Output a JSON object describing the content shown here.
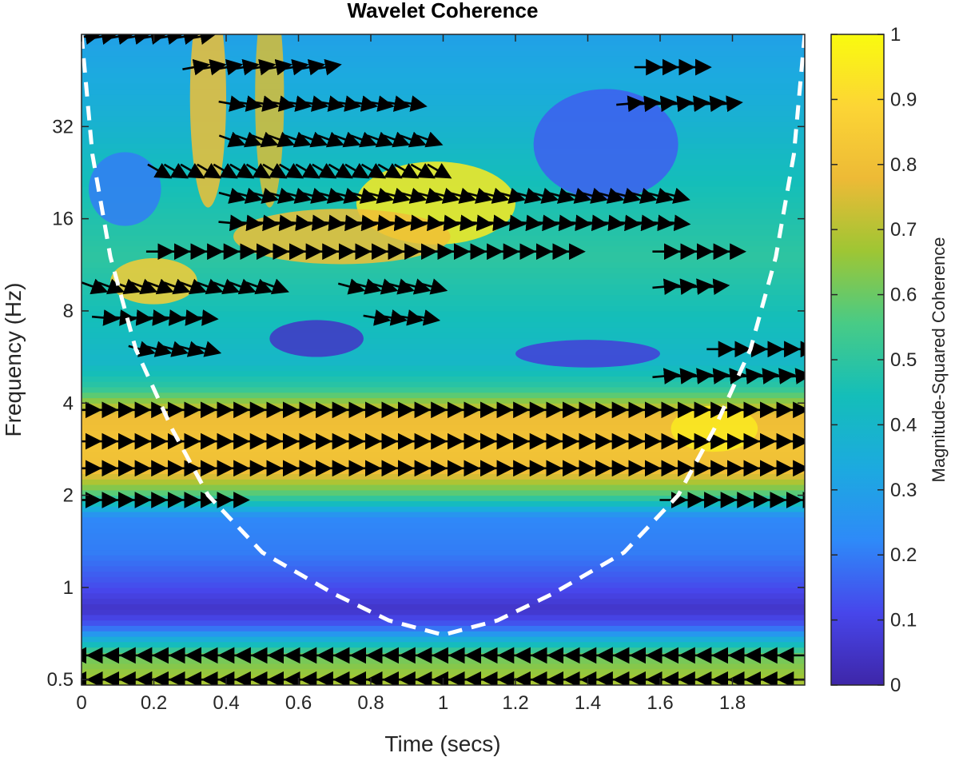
{
  "chart_data": {
    "type": "heatmap",
    "title": "Wavelet Coherence",
    "xlabel": "Time (secs)",
    "ylabel": "Frequency (Hz)",
    "colorbar_label": "Magnitude-Squared Coherence",
    "xlim": [
      0,
      2
    ],
    "ylim_hz": [
      0.48,
      64
    ],
    "y_scale": "log2",
    "x_ticks": [
      0,
      0.2,
      0.4,
      0.6,
      0.8,
      1,
      1.2,
      1.4,
      1.6,
      1.8
    ],
    "x_tick_labels": [
      "0",
      "0.2",
      "0.4",
      "0.6",
      "0.8",
      "1",
      "1.2",
      "1.4",
      "1.6",
      "1.8"
    ],
    "y_ticks": [
      0.5,
      1,
      2,
      4,
      8,
      16,
      32
    ],
    "y_tick_labels": [
      "0.5",
      "1",
      "2",
      "4",
      "8",
      "16",
      "32"
    ],
    "colorbar_ticks": [
      0,
      0.1,
      0.2,
      0.3,
      0.4,
      0.5,
      0.6,
      0.7,
      0.8,
      0.9,
      1
    ],
    "colorbar_tick_labels": [
      "0",
      "0.1",
      "0.2",
      "0.3",
      "0.4",
      "0.5",
      "0.6",
      "0.7",
      "0.8",
      "0.9",
      "1"
    ],
    "colormap": "parula",
    "colormap_stops": [
      "#3e26a8",
      "#4746eb",
      "#2e8af8",
      "#1caadf",
      "#14beb9",
      "#48cb86",
      "#9ec634",
      "#edba36",
      "#fcd535",
      "#f9fb0e"
    ],
    "bands": [
      {
        "f": 0.5,
        "coherence": 0.68
      },
      {
        "f": 0.6,
        "coherence": 0.6
      },
      {
        "f": 0.75,
        "coherence": 0.15
      },
      {
        "f": 0.85,
        "coherence": 0.05
      },
      {
        "f": 1.0,
        "coherence": 0.12
      },
      {
        "f": 1.3,
        "coherence": 0.2
      },
      {
        "f": 1.7,
        "coherence": 0.22
      },
      {
        "f": 2.0,
        "coherence": 0.55
      },
      {
        "f": 2.4,
        "coherence": 0.8
      },
      {
        "f": 3.0,
        "coherence": 0.82
      },
      {
        "f": 3.7,
        "coherence": 0.78
      },
      {
        "f": 4.5,
        "coherence": 0.5
      },
      {
        "f": 5.5,
        "coherence": 0.4
      },
      {
        "f": 8,
        "coherence": 0.45
      },
      {
        "f": 12,
        "coherence": 0.5
      },
      {
        "f": 20,
        "coherence": 0.45
      },
      {
        "f": 40,
        "coherence": 0.35
      },
      {
        "f": 64,
        "coherence": 0.3
      }
    ],
    "regions": [
      {
        "t": 0.98,
        "f": 18,
        "rt": 0.22,
        "rf": 0.45,
        "coherence": 0.95
      },
      {
        "t": 0.72,
        "f": 14,
        "rt": 0.3,
        "rf": 0.3,
        "coherence": 0.8
      },
      {
        "t": 0.35,
        "f": 40,
        "rt": 0.05,
        "rf": 1.2,
        "coherence": 0.8
      },
      {
        "t": 0.52,
        "f": 40,
        "rt": 0.04,
        "rf": 1.2,
        "coherence": 0.75
      },
      {
        "t": 0.2,
        "f": 10,
        "rt": 0.12,
        "rf": 0.25,
        "coherence": 0.85
      },
      {
        "t": 0.65,
        "f": 6.5,
        "rt": 0.13,
        "rf": 0.2,
        "coherence": 0.05
      },
      {
        "t": 1.4,
        "f": 5.8,
        "rt": 0.2,
        "rf": 0.15,
        "coherence": 0.08
      },
      {
        "t": 1.75,
        "f": 3.3,
        "rt": 0.12,
        "rf": 0.25,
        "coherence": 0.95
      },
      {
        "t": 1.45,
        "f": 28,
        "rt": 0.2,
        "rf": 0.6,
        "coherence": 0.15
      },
      {
        "t": 0.12,
        "f": 20,
        "rt": 0.1,
        "rf": 0.4,
        "coherence": 0.2
      }
    ],
    "arrow_rows": [
      {
        "f": 0.5,
        "t_start": 0.0,
        "t_end": 2.0,
        "angle_deg": 180
      },
      {
        "f": 0.6,
        "t_start": 0.0,
        "t_end": 2.0,
        "angle_deg": 180
      },
      {
        "f": 1.93,
        "t_start": 0.0,
        "t_end": 0.45,
        "angle_deg": 0
      },
      {
        "f": 1.93,
        "t_start": 1.62,
        "t_end": 2.0,
        "angle_deg": 0
      },
      {
        "f": 2.45,
        "t_start": 0.0,
        "t_end": 2.0,
        "angle_deg": 0
      },
      {
        "f": 3.0,
        "t_start": 0.0,
        "t_end": 2.0,
        "angle_deg": 0
      },
      {
        "f": 3.8,
        "t_start": 0.0,
        "t_end": 2.0,
        "angle_deg": 0
      },
      {
        "f": 4.9,
        "t_start": 1.6,
        "t_end": 2.0,
        "angle_deg": 5
      },
      {
        "f": 6.0,
        "t_start": 1.75,
        "t_end": 2.0,
        "angle_deg": 0
      },
      {
        "f": 6.0,
        "t_start": 0.15,
        "t_end": 0.35,
        "angle_deg": -15
      },
      {
        "f": 7.6,
        "t_start": 0.05,
        "t_end": 0.35,
        "angle_deg": -5
      },
      {
        "f": 7.6,
        "t_start": 0.8,
        "t_end": 0.95,
        "angle_deg": -10
      },
      {
        "f": 9.6,
        "t_start": 0.02,
        "t_end": 0.55,
        "angle_deg": -20
      },
      {
        "f": 9.6,
        "t_start": 0.73,
        "t_end": 1.0,
        "angle_deg": -15
      },
      {
        "f": 9.6,
        "t_start": 1.6,
        "t_end": 1.75,
        "angle_deg": 5
      },
      {
        "f": 12.5,
        "t_start": 0.2,
        "t_end": 1.35,
        "angle_deg": 0
      },
      {
        "f": 12.5,
        "t_start": 1.6,
        "t_end": 1.8,
        "angle_deg": 0
      },
      {
        "f": 15.5,
        "t_start": 0.4,
        "t_end": 1.65,
        "angle_deg": -5
      },
      {
        "f": 19,
        "t_start": 0.4,
        "t_end": 1.65,
        "angle_deg": -15
      },
      {
        "f": 23,
        "t_start": 0.2,
        "t_end": 1.0,
        "angle_deg": -30
      },
      {
        "f": 29,
        "t_start": 0.4,
        "t_end": 1.0,
        "angle_deg": -20
      },
      {
        "f": 38,
        "t_start": 0.4,
        "t_end": 0.95,
        "angle_deg": -10
      },
      {
        "f": 38,
        "t_start": 1.5,
        "t_end": 1.8,
        "angle_deg": 5
      },
      {
        "f": 50,
        "t_start": 0.3,
        "t_end": 0.7,
        "angle_deg": 10
      },
      {
        "f": 50,
        "t_start": 1.55,
        "t_end": 1.7,
        "angle_deg": 0
      },
      {
        "f": 63,
        "t_start": 0.0,
        "t_end": 0.35,
        "angle_deg": 10
      }
    ],
    "coi": [
      {
        "t": 0.0,
        "f": 64
      },
      {
        "t": 0.03,
        "f": 26
      },
      {
        "t": 0.08,
        "f": 12
      },
      {
        "t": 0.15,
        "f": 6
      },
      {
        "t": 0.25,
        "f": 3.3
      },
      {
        "t": 0.35,
        "f": 2.0
      },
      {
        "t": 0.5,
        "f": 1.3
      },
      {
        "t": 0.7,
        "f": 0.95
      },
      {
        "t": 0.85,
        "f": 0.78
      },
      {
        "t": 1.0,
        "f": 0.7
      },
      {
        "t": 1.15,
        "f": 0.78
      },
      {
        "t": 1.3,
        "f": 0.95
      },
      {
        "t": 1.5,
        "f": 1.3
      },
      {
        "t": 1.65,
        "f": 2.0
      },
      {
        "t": 1.75,
        "f": 3.3
      },
      {
        "t": 1.85,
        "f": 6
      },
      {
        "t": 1.92,
        "f": 12
      },
      {
        "t": 1.97,
        "f": 26
      },
      {
        "t": 2.0,
        "f": 64
      }
    ]
  }
}
